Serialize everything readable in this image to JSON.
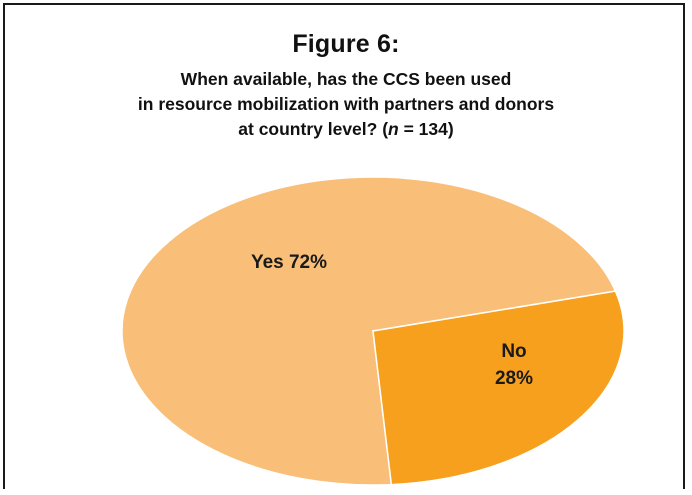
{
  "figure": {
    "label": "Figure 6:",
    "title_lines": [
      "When available, has the CCS been used",
      "in resource mobilization with partners and donors",
      "at country level? ("
    ],
    "n_symbol": "n",
    "n_rest": " = 134)"
  },
  "chart_data": {
    "type": "pie",
    "title": "When available, has the CCS been used in resource mobilization with partners and donors at country level? (n = 134)",
    "categories": [
      "Yes",
      "No"
    ],
    "values": [
      72,
      28
    ],
    "unit": "%",
    "labels": [
      {
        "line1": "Yes 72%",
        "line2": ""
      },
      {
        "line1": "No",
        "line2": "28%"
      }
    ],
    "colors": [
      "#F9BE77",
      "#F6A01E"
    ],
    "legend": "none"
  }
}
